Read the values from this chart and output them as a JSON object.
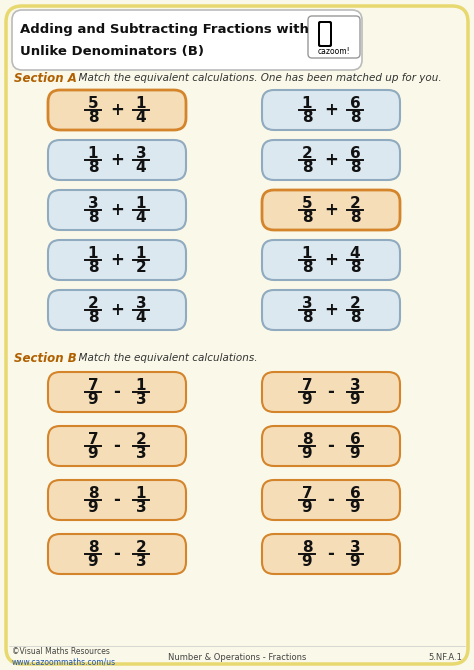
{
  "title_line1": "Adding and Subtracting Fractions with",
  "title_line2": "Unlike Denominators (B)",
  "bg_color": "#faf8e8",
  "outer_border_color": "#e8d870",
  "title_box_color": "#ffffff",
  "section_a_label": "Section A",
  "section_a_text": "  Match the equivalent calculations. One has been matched up for you.",
  "section_b_label": "Section B",
  "section_b_text": "  Match the equivalent calculations.",
  "footer_left1": "©Visual Maths Resources",
  "footer_left2": "www.cazoommaths.com/us",
  "footer_center": "Number & Operations - Fractions",
  "footer_right": "5.NF.A.1",
  "blue_box_color": "#dce8f0",
  "blue_box_border": "#90aabf",
  "orange_box_color": "#f5ddb8",
  "orange_box_border": "#d4842a",
  "peach_box_color": "#f5ddb8",
  "peach_box_border": "#d4842a",
  "section_a_left": [
    {
      "n1": "5",
      "d1": "8",
      "op": "+",
      "n2": "1",
      "d2": "4",
      "highlighted": true
    },
    {
      "n1": "1",
      "d1": "8",
      "op": "+",
      "n2": "3",
      "d2": "4",
      "highlighted": false
    },
    {
      "n1": "3",
      "d1": "8",
      "op": "+",
      "n2": "1",
      "d2": "4",
      "highlighted": false
    },
    {
      "n1": "1",
      "d1": "8",
      "op": "+",
      "n2": "1",
      "d2": "2",
      "highlighted": false
    },
    {
      "n1": "2",
      "d1": "8",
      "op": "+",
      "n2": "3",
      "d2": "4",
      "highlighted": false
    }
  ],
  "section_a_right": [
    {
      "n1": "1",
      "d1": "8",
      "op": "+",
      "n2": "6",
      "d2": "8",
      "highlighted": false
    },
    {
      "n1": "2",
      "d1": "8",
      "op": "+",
      "n2": "6",
      "d2": "8",
      "highlighted": false
    },
    {
      "n1": "5",
      "d1": "8",
      "op": "+",
      "n2": "2",
      "d2": "8",
      "highlighted": true
    },
    {
      "n1": "1",
      "d1": "8",
      "op": "+",
      "n2": "4",
      "d2": "8",
      "highlighted": false
    },
    {
      "n1": "3",
      "d1": "8",
      "op": "+",
      "n2": "2",
      "d2": "8",
      "highlighted": false
    }
  ],
  "section_b_left": [
    {
      "n1": "7",
      "d1": "9",
      "op": "-",
      "n2": "1",
      "d2": "3"
    },
    {
      "n1": "7",
      "d1": "9",
      "op": "-",
      "n2": "2",
      "d2": "3"
    },
    {
      "n1": "8",
      "d1": "9",
      "op": "-",
      "n2": "1",
      "d2": "3"
    },
    {
      "n1": "8",
      "d1": "9",
      "op": "-",
      "n2": "2",
      "d2": "3"
    }
  ],
  "section_b_right": [
    {
      "n1": "7",
      "d1": "9",
      "op": "-",
      "n2": "3",
      "d2": "9"
    },
    {
      "n1": "8",
      "d1": "9",
      "op": "-",
      "n2": "6",
      "d2": "9"
    },
    {
      "n1": "7",
      "d1": "9",
      "op": "-",
      "n2": "6",
      "d2": "9"
    },
    {
      "n1": "8",
      "d1": "9",
      "op": "-",
      "n2": "3",
      "d2": "9"
    }
  ]
}
